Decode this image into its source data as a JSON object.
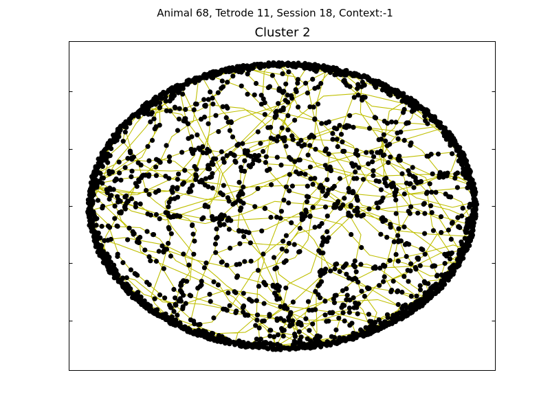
{
  "figure": {
    "suptitle": "Animal 68, Tetrode 11, Session 18, Context:-1"
  },
  "chart_data": {
    "type": "scatter",
    "title": "Cluster 2",
    "xlabel": "",
    "ylabel": "",
    "grid": false,
    "legend": "none",
    "tick_labels_shown": false,
    "series": [
      {
        "kind": "trajectory-line",
        "color": "#bfbf00",
        "shape": "circular-arena",
        "center": [
          0,
          0
        ],
        "radius": 1,
        "approx_segments": 700
      },
      {
        "kind": "spike-points",
        "color": "#000000",
        "marker": "filled-circle",
        "approx_count": 2600
      }
    ],
    "xlim": [
      -1.1,
      1.1
    ],
    "ylim": [
      -1.15,
      1.15
    ]
  }
}
